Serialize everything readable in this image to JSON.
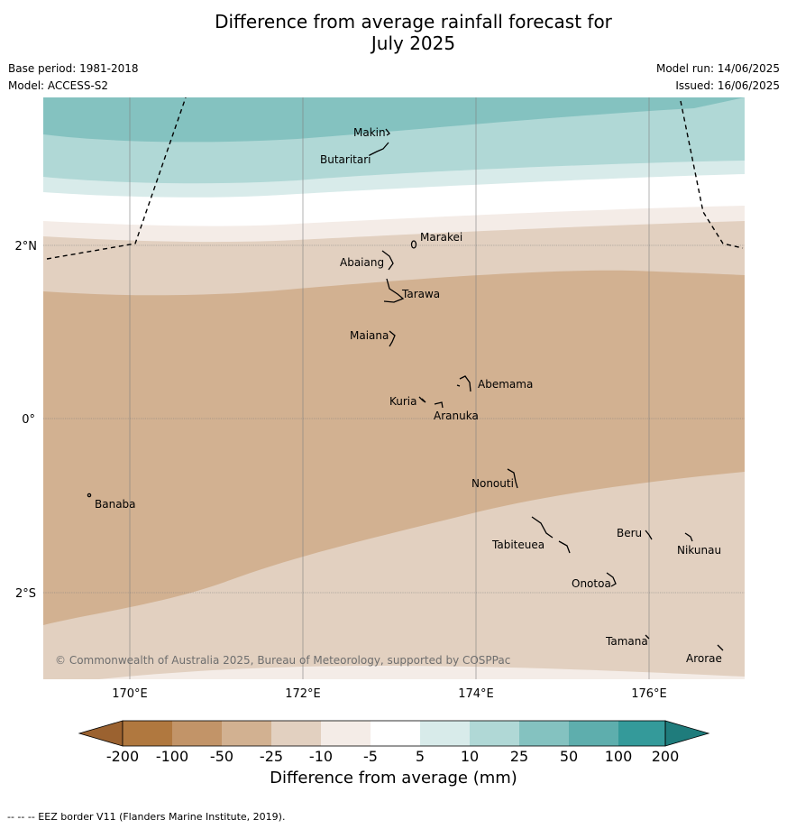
{
  "title_line1": "Difference from average rainfall forecast for",
  "title_line2": "July 2025",
  "meta": {
    "base_period": "Base period: 1981-2018",
    "model": "Model: ACCESS-S2",
    "model_run": "Model run: 14/06/2025",
    "issued": "Issued: 16/06/2025"
  },
  "copyright": "© Commonwealth of Australia 2025, Bureau of Meteorology, supported by COSPPac",
  "axes": {
    "x_ticks": [
      "170°E",
      "172°E",
      "174°E",
      "176°E"
    ],
    "y_ticks": [
      "2°N",
      "0°",
      "2°S"
    ]
  },
  "places": [
    "Makin",
    "Butaritari",
    "Marakei",
    "Abaiang",
    "Tarawa",
    "Maiana",
    "Abemama",
    "Kuria",
    "Aranuka",
    "Nonouti",
    "Banaba",
    "Beru",
    "Nikunau",
    "Tabiteuea",
    "Onotoa",
    "Tamana",
    "Arorae"
  ],
  "colorbar": {
    "label": "Difference from average (mm)",
    "ticks": [
      "-200",
      "-100",
      "-50",
      "-25",
      "-10",
      "-5",
      "5",
      "10",
      "25",
      "50",
      "100",
      "200"
    ],
    "colors": {
      "lt_-200": "#9b6230",
      "-200_-100": "#b0783f",
      "-100_-50": "#c29468",
      "-50_-25": "#d2b191",
      "-25_-10": "#e2d0c0",
      "-10_-5": "#f4ece7",
      "-5_5": "#ffffff",
      "5_10": "#d8ebea",
      "10_25": "#b0d8d6",
      "25_50": "#84c2c0",
      "50_100": "#5eaead",
      "100_200": "#349a9a",
      "gt_200": "#1f7c7c"
    }
  },
  "footer": "--  --  -- EEZ border V11 (Flanders Marine Institute, 2019)."
}
